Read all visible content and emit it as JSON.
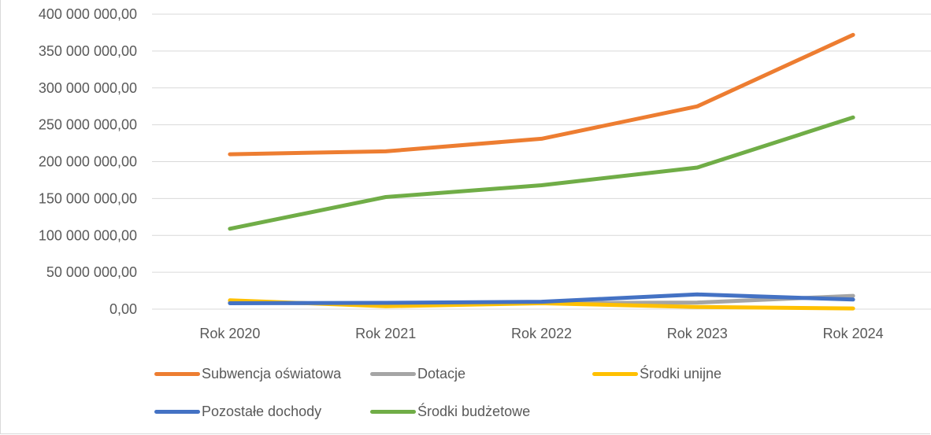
{
  "chart_data": {
    "type": "line",
    "categories": [
      "Rok 2020",
      "Rok 2021",
      "Rok 2022",
      "Rok 2023",
      "Rok 2024"
    ],
    "ylim": [
      0,
      400000000
    ],
    "yticks": [
      0,
      50000000,
      100000000,
      150000000,
      200000000,
      250000000,
      300000000,
      350000000,
      400000000
    ],
    "ytick_labels": [
      "0,00",
      "50 000 000,00",
      "100 000 000,00",
      "150 000 000,00",
      "200 000 000,00",
      "250 000 000,00",
      "300 000 000,00",
      "350 000 000,00",
      "400 000 000,00"
    ],
    "grid": true,
    "legend_position": "bottom",
    "series": [
      {
        "name": "Subwencja oświatowa",
        "color": "#ED7D31",
        "values": [
          210000000,
          214000000,
          231000000,
          275000000,
          372000000
        ]
      },
      {
        "name": "Dotacje",
        "color": "#A5A5A5",
        "values": [
          9000000,
          7000000,
          8000000,
          9000000,
          18000000
        ]
      },
      {
        "name": "Środki unijne",
        "color": "#FFC000",
        "values": [
          12000000,
          4000000,
          8000000,
          3000000,
          1000000
        ]
      },
      {
        "name": "Pozostałe dochody",
        "color": "#4472C4",
        "values": [
          8000000,
          8500000,
          10000000,
          20000000,
          13000000
        ]
      },
      {
        "name": "Środki budżetowe",
        "color": "#70AD47",
        "values": [
          109000000,
          152000000,
          168000000,
          192000000,
          260000000
        ]
      }
    ]
  }
}
